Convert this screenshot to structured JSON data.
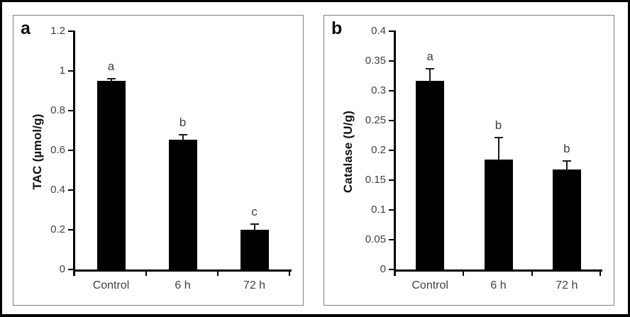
{
  "figure": {
    "description_visible_panels": [
      "a",
      "b"
    ]
  },
  "colors": {
    "bar": "#000000",
    "axis": "#000000",
    "tick_label": "#404040",
    "category_label": "#404040",
    "sig_letter": "#3d3d3d",
    "panel_border": "#808080",
    "figure_border": "#000000",
    "background": "#ffffff"
  },
  "chart_data": [
    {
      "type": "bar",
      "panel_label": "a",
      "ylabel": "TAC (µmol/g)",
      "xlabel": "",
      "ylim": [
        0,
        1.2
      ],
      "ytick_values": [
        0,
        0.2,
        0.4,
        0.6,
        0.8,
        1,
        1.2
      ],
      "ytick_labels": [
        "0",
        "0.2",
        "0.4",
        "0.6",
        "0.8",
        "1",
        "1.2"
      ],
      "categories": [
        "Control",
        "6 h",
        "72 h"
      ],
      "values": [
        0.95,
        0.655,
        0.2
      ],
      "errors": [
        0.01,
        0.022,
        0.028
      ],
      "sig_letters": [
        "a",
        "b",
        "c"
      ],
      "grid": false,
      "legend": null
    },
    {
      "type": "bar",
      "panel_label": "b",
      "ylabel": "Catalase (U/g)",
      "xlabel": "",
      "ylim": [
        0,
        0.4
      ],
      "ytick_values": [
        0,
        0.05,
        0.1,
        0.15,
        0.2,
        0.25,
        0.3,
        0.35,
        0.4
      ],
      "ytick_labels": [
        "0",
        "0.05",
        "0.1",
        "0.15",
        "0.2",
        "0.25",
        "0.3",
        "0.35",
        "0.4"
      ],
      "categories": [
        "Control",
        "6 h",
        "72 h"
      ],
      "values": [
        0.317,
        0.185,
        0.168
      ],
      "errors": [
        0.02,
        0.036,
        0.014
      ],
      "sig_letters": [
        "a",
        "b",
        "b"
      ],
      "grid": false,
      "legend": null
    }
  ]
}
